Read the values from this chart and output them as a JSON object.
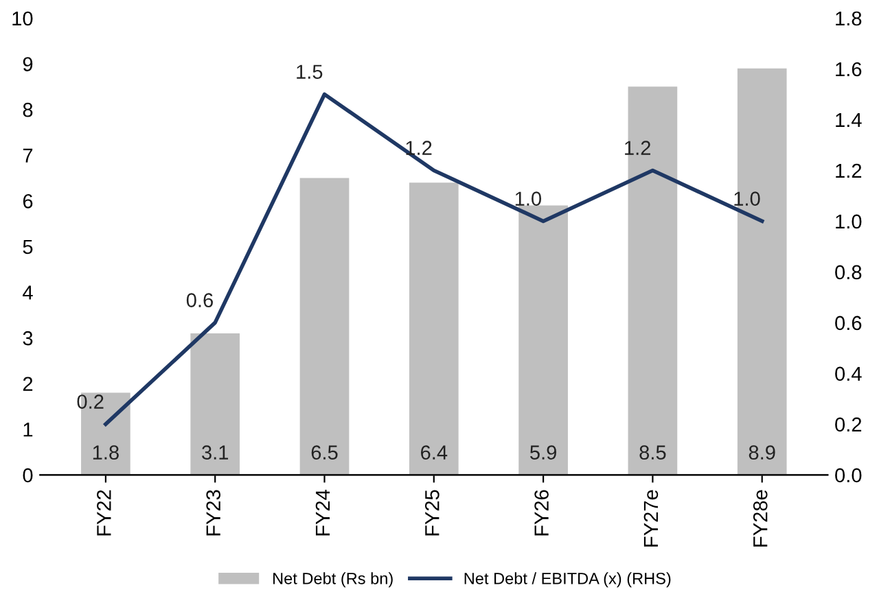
{
  "chart_data": {
    "type": "bar",
    "categories": [
      "FY22",
      "FY23",
      "FY24",
      "FY25",
      "FY26",
      "FY27e",
      "FY28e"
    ],
    "series": [
      {
        "name": "Net Debt (Rs bn)",
        "color": "#bfbfbf",
        "values": [
          1.8,
          3.1,
          6.5,
          6.4,
          5.9,
          8.5,
          8.9
        ]
      },
      {
        "name": "Net Debt / EBITDA (x) (RHS)",
        "type": "line",
        "axis": "y2",
        "color": "#1f3864",
        "values": [
          0.2,
          0.6,
          1.5,
          1.2,
          1.0,
          1.2,
          1.0
        ],
        "value_labels": [
          "0.2",
          "0.6",
          "1.5",
          "1.2",
          "1.0",
          "1.2",
          "1.0"
        ]
      }
    ],
    "ylim": [
      0,
      10
    ],
    "yticks": [
      0,
      1,
      2,
      3,
      4,
      5,
      6,
      7,
      8,
      9,
      10
    ],
    "y2lim": [
      0,
      1.8
    ],
    "y2ticks": [
      {
        "value": 0,
        "label": "0.0"
      },
      {
        "value": 0.2,
        "label": "0.2"
      },
      {
        "value": 0.4,
        "label": "0.4"
      },
      {
        "value": 0.6,
        "label": "0.6"
      },
      {
        "value": 0.8,
        "label": "0.8"
      },
      {
        "value": 1.0,
        "label": "1.0"
      },
      {
        "value": 1.2,
        "label": "1.2"
      },
      {
        "value": 1.4,
        "label": "1.4"
      },
      {
        "value": 1.6,
        "label": "1.6"
      },
      {
        "value": 1.8,
        "label": "1.8"
      }
    ],
    "data_labels": true,
    "grid": false,
    "legend": "bottom",
    "marker": "none",
    "line_style": "solid"
  }
}
